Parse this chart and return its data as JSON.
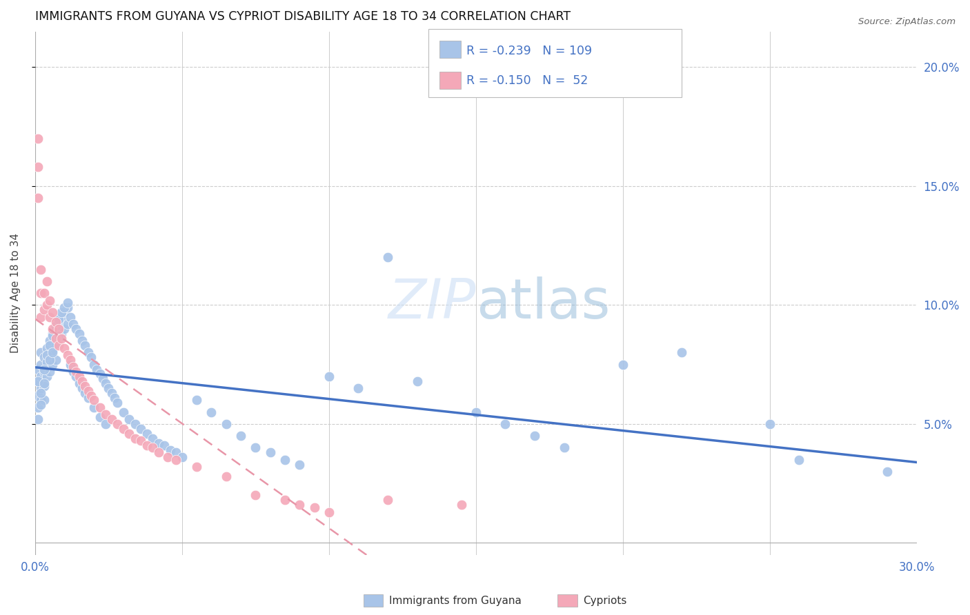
{
  "title": "IMMIGRANTS FROM GUYANA VS CYPRIOT DISABILITY AGE 18 TO 34 CORRELATION CHART",
  "source": "Source: ZipAtlas.com",
  "ylabel": "Disability Age 18 to 34",
  "xlim": [
    0.0,
    0.3
  ],
  "ylim": [
    -0.005,
    0.215
  ],
  "legend_r_guyana": "-0.239",
  "legend_n_guyana": "109",
  "legend_r_cypriot": "-0.150",
  "legend_n_cypriot": "52",
  "color_guyana": "#a8c4e8",
  "color_cypriot": "#f4a8b8",
  "color_trendline_guyana": "#4472c4",
  "color_trendline_cypriot": "#e896a8",
  "axis_label_color": "#4472c4",
  "guyana_x": [
    0.001,
    0.001,
    0.001,
    0.001,
    0.001,
    0.002,
    0.002,
    0.002,
    0.002,
    0.002,
    0.003,
    0.003,
    0.003,
    0.003,
    0.004,
    0.004,
    0.004,
    0.005,
    0.005,
    0.005,
    0.006,
    0.006,
    0.006,
    0.007,
    0.007,
    0.007,
    0.008,
    0.008,
    0.009,
    0.009,
    0.01,
    0.01,
    0.011,
    0.011,
    0.012,
    0.013,
    0.014,
    0.015,
    0.016,
    0.017,
    0.018,
    0.019,
    0.02,
    0.021,
    0.022,
    0.023,
    0.024,
    0.025,
    0.026,
    0.027,
    0.028,
    0.03,
    0.032,
    0.034,
    0.036,
    0.038,
    0.04,
    0.042,
    0.044,
    0.046,
    0.048,
    0.05,
    0.055,
    0.06,
    0.065,
    0.07,
    0.075,
    0.08,
    0.085,
    0.09,
    0.1,
    0.11,
    0.12,
    0.13,
    0.15,
    0.16,
    0.17,
    0.18,
    0.2,
    0.22,
    0.25,
    0.26,
    0.29,
    0.001,
    0.002,
    0.002,
    0.003,
    0.003,
    0.004,
    0.005,
    0.005,
    0.006,
    0.006,
    0.007,
    0.008,
    0.008,
    0.009,
    0.01,
    0.011,
    0.012,
    0.013,
    0.014,
    0.015,
    0.016,
    0.017,
    0.018,
    0.02,
    0.022,
    0.024
  ],
  "guyana_y": [
    0.073,
    0.068,
    0.062,
    0.057,
    0.052,
    0.08,
    0.075,
    0.07,
    0.065,
    0.06,
    0.078,
    0.072,
    0.066,
    0.06,
    0.082,
    0.076,
    0.07,
    0.085,
    0.078,
    0.072,
    0.088,
    0.081,
    0.075,
    0.091,
    0.084,
    0.077,
    0.093,
    0.086,
    0.095,
    0.088,
    0.097,
    0.09,
    0.099,
    0.092,
    0.095,
    0.092,
    0.09,
    0.088,
    0.085,
    0.083,
    0.08,
    0.078,
    0.075,
    0.073,
    0.071,
    0.069,
    0.067,
    0.065,
    0.063,
    0.061,
    0.059,
    0.055,
    0.052,
    0.05,
    0.048,
    0.046,
    0.044,
    0.042,
    0.041,
    0.039,
    0.038,
    0.036,
    0.06,
    0.055,
    0.05,
    0.045,
    0.04,
    0.038,
    0.035,
    0.033,
    0.07,
    0.065,
    0.12,
    0.068,
    0.055,
    0.05,
    0.045,
    0.04,
    0.075,
    0.08,
    0.05,
    0.035,
    0.03,
    0.068,
    0.063,
    0.058,
    0.073,
    0.067,
    0.079,
    0.083,
    0.077,
    0.087,
    0.08,
    0.091,
    0.094,
    0.087,
    0.097,
    0.099,
    0.101,
    0.075,
    0.072,
    0.07,
    0.067,
    0.065,
    0.063,
    0.061,
    0.057,
    0.053,
    0.05
  ],
  "cypriot_x": [
    0.001,
    0.001,
    0.001,
    0.002,
    0.002,
    0.002,
    0.003,
    0.003,
    0.004,
    0.004,
    0.005,
    0.005,
    0.006,
    0.006,
    0.007,
    0.007,
    0.008,
    0.008,
    0.009,
    0.01,
    0.011,
    0.012,
    0.013,
    0.014,
    0.015,
    0.016,
    0.017,
    0.018,
    0.019,
    0.02,
    0.022,
    0.024,
    0.026,
    0.028,
    0.03,
    0.032,
    0.034,
    0.036,
    0.038,
    0.04,
    0.042,
    0.045,
    0.048,
    0.055,
    0.065,
    0.075,
    0.085,
    0.09,
    0.095,
    0.1,
    0.12,
    0.145
  ],
  "cypriot_y": [
    0.17,
    0.158,
    0.145,
    0.115,
    0.105,
    0.095,
    0.105,
    0.098,
    0.11,
    0.1,
    0.102,
    0.095,
    0.097,
    0.09,
    0.093,
    0.086,
    0.09,
    0.083,
    0.086,
    0.082,
    0.079,
    0.077,
    0.074,
    0.072,
    0.07,
    0.068,
    0.066,
    0.064,
    0.062,
    0.06,
    0.057,
    0.054,
    0.052,
    0.05,
    0.048,
    0.046,
    0.044,
    0.043,
    0.041,
    0.04,
    0.038,
    0.036,
    0.035,
    0.032,
    0.028,
    0.02,
    0.018,
    0.016,
    0.015,
    0.013,
    0.018,
    0.016
  ]
}
